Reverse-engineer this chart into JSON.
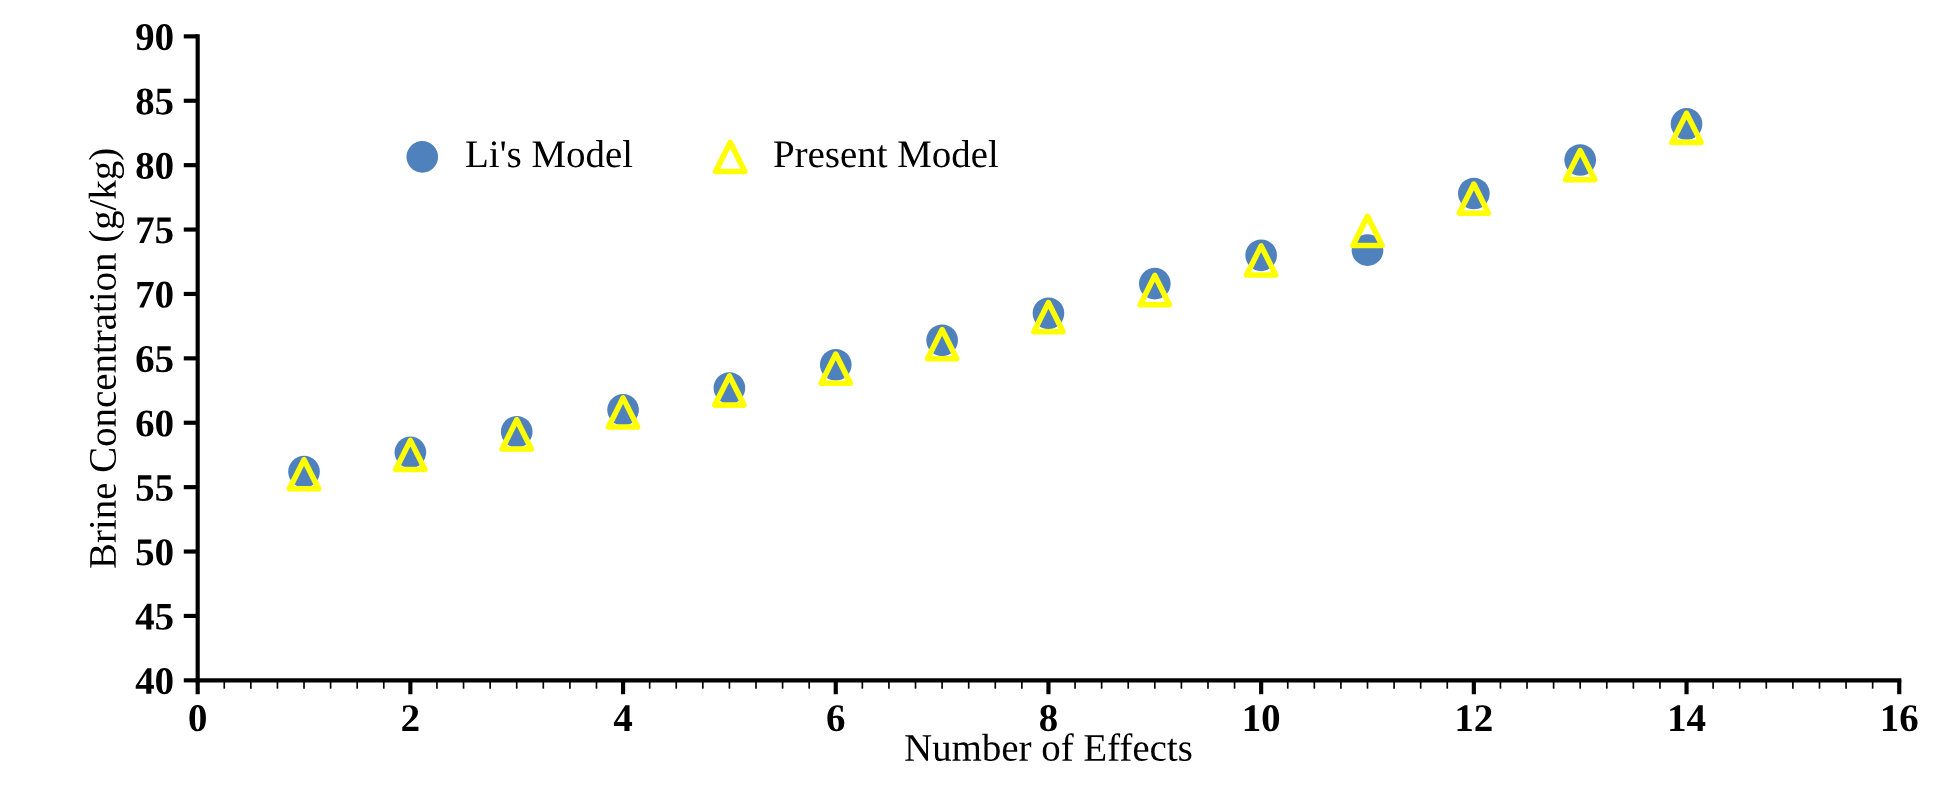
{
  "chart_data": {
    "type": "scatter",
    "xlabel": "Number of Effects",
    "ylabel": "Brine Concentration (g/kg)",
    "x": [
      1,
      2,
      3,
      4,
      5,
      6,
      7,
      8,
      9,
      10,
      11,
      12,
      13,
      14
    ],
    "series": [
      {
        "name": "Li's Model",
        "color": "#4f81bd",
        "marker": "circle",
        "values": [
          56.2,
          57.7,
          59.3,
          61.0,
          62.7,
          64.5,
          66.4,
          68.5,
          70.8,
          73.0,
          73.4,
          77.8,
          80.4,
          83.2
        ]
      },
      {
        "name": "Present Model",
        "color": "#ffff00",
        "marker": "triangle",
        "values": [
          56.0,
          57.5,
          59.1,
          60.8,
          62.5,
          64.2,
          66.1,
          68.2,
          70.3,
          72.6,
          74.9,
          77.4,
          80.0,
          82.9
        ]
      }
    ],
    "xlim": [
      0,
      16
    ],
    "xticks": [
      0,
      2,
      4,
      6,
      8,
      10,
      12,
      14,
      16
    ],
    "ylim": [
      40,
      90
    ],
    "yticks": [
      40,
      45,
      50,
      55,
      60,
      65,
      70,
      75,
      80,
      85,
      90
    ],
    "grid": false,
    "legend": "top left"
  }
}
